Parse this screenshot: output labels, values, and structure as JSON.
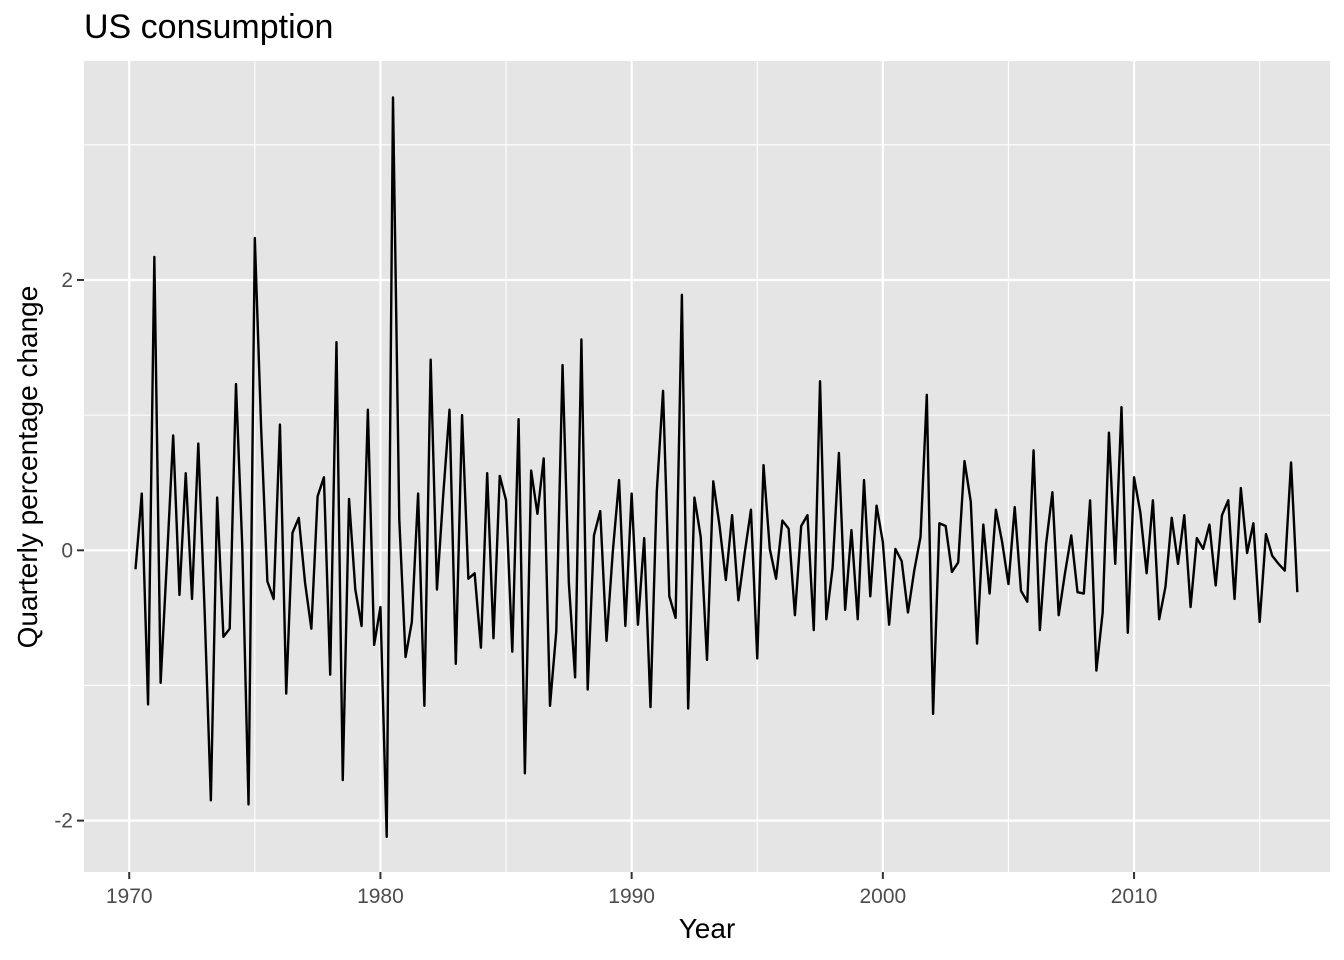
{
  "chart_data": {
    "type": "line",
    "title": "US consumption",
    "xlabel": "Year",
    "ylabel": "Quarterly percentage change",
    "xlim": [
      1968.2,
      2017.8
    ],
    "ylim": [
      -2.38,
      3.62
    ],
    "x_ticks": [
      1970,
      1980,
      1990,
      2000,
      2010
    ],
    "x_tick_labels": [
      "1970",
      "1980",
      "1990",
      "2000",
      "2010"
    ],
    "y_ticks": [
      -2,
      0,
      2
    ],
    "y_tick_labels": [
      "-2",
      "0",
      "2"
    ],
    "grid": true,
    "legend": "none",
    "colors": {
      "panel": "#e5e5e5",
      "grid": "#ffffff",
      "line": "#000000",
      "tick_text": "#4d4d4d",
      "axis_text": "#000000"
    },
    "series": [
      {
        "x_start": 1970.25,
        "x_step": 0.25,
        "values": [
          -0.14,
          0.42,
          -1.14,
          2.17,
          -0.98,
          -0.08,
          0.85,
          -0.33,
          0.57,
          -0.36,
          0.79,
          -0.44,
          -1.85,
          0.39,
          -0.64,
          -0.58,
          1.23,
          0.03,
          -1.88,
          2.31,
          0.91,
          -0.23,
          -0.36,
          0.93,
          -1.06,
          0.13,
          0.24,
          -0.24,
          -0.58,
          0.4,
          0.54,
          -0.92,
          1.54,
          -1.7,
          0.38,
          -0.29,
          -0.56,
          1.04,
          -0.7,
          -0.42,
          -2.12,
          3.35,
          0.23,
          -0.79,
          -0.53,
          0.42,
          -1.15,
          1.41,
          -0.29,
          0.41,
          1.04,
          -0.84,
          1.0,
          -0.21,
          -0.17,
          -0.72,
          0.57,
          -0.65,
          0.55,
          0.37,
          -0.75,
          0.97,
          -1.65,
          0.59,
          0.27,
          0.68,
          -1.15,
          -0.6,
          1.37,
          -0.24,
          -0.94,
          1.56,
          -1.03,
          0.11,
          0.29,
          -0.67,
          -0.01,
          0.52,
          -0.56,
          0.42,
          -0.55,
          0.09,
          -1.16,
          0.43,
          1.18,
          -0.34,
          -0.5,
          1.89,
          -1.17,
          0.39,
          0.1,
          -0.81,
          0.51,
          0.18,
          -0.22,
          0.26,
          -0.37,
          -0.02,
          0.3,
          -0.8,
          0.63,
          0.01,
          -0.21,
          0.22,
          0.16,
          -0.48,
          0.18,
          0.26,
          -0.59,
          1.25,
          -0.51,
          -0.13,
          0.72,
          -0.44,
          0.15,
          -0.51,
          0.52,
          -0.34,
          0.33,
          0.06,
          -0.55,
          0.01,
          -0.08,
          -0.46,
          -0.15,
          0.1,
          1.15,
          -1.21,
          0.2,
          0.18,
          -0.16,
          -0.09,
          0.66,
          0.36,
          -0.69,
          0.19,
          -0.32,
          0.3,
          0.06,
          -0.25,
          0.32,
          -0.3,
          -0.38,
          0.74,
          -0.59,
          0.05,
          0.43,
          -0.48,
          -0.17,
          0.11,
          -0.31,
          -0.32,
          0.37,
          -0.89,
          -0.46,
          0.87,
          -0.1,
          1.06,
          -0.61,
          0.54,
          0.28,
          -0.17,
          0.37,
          -0.51,
          -0.27,
          0.24,
          -0.1,
          0.26,
          -0.42,
          0.09,
          0.01,
          0.19,
          -0.26,
          0.26,
          0.37,
          -0.36,
          0.46,
          -0.02,
          0.2,
          -0.53,
          0.12,
          -0.04,
          -0.1,
          -0.15,
          0.65,
          -0.31
        ]
      }
    ]
  }
}
